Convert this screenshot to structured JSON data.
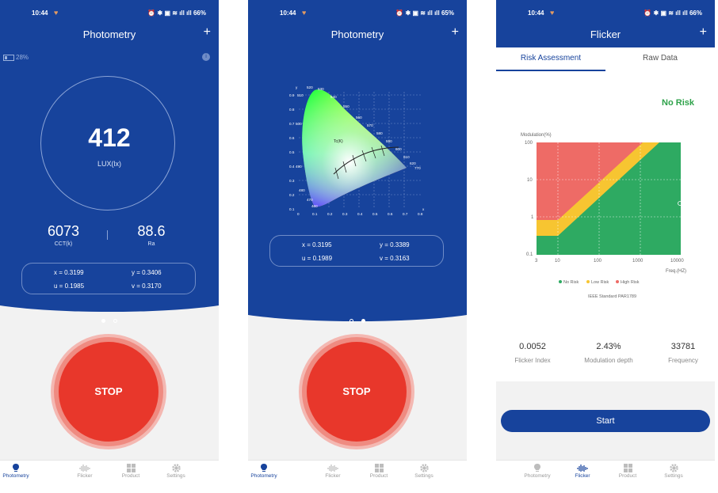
{
  "status_bar": {
    "time": "10:44",
    "heart": "♥",
    "icons": "⏰ ✱ ▣ ≋ ıll ıll",
    "battery_p1": "66%",
    "battery_p2": "65%",
    "battery_p3": "66%"
  },
  "colors": {
    "primary": "#17439c",
    "stop": "#e8372b",
    "no_risk": "#2eaa62",
    "low_risk": "#f7c531",
    "high_risk": "#ee6b66"
  },
  "screen1": {
    "title": "Photometry",
    "plus": "+",
    "battery_level": "28%",
    "lux_value": "412",
    "lux_unit": "LUX(lx)",
    "cct_value": "6073",
    "cct_label": "CCT(k)",
    "ra_value": "88.6",
    "ra_label": "Ra",
    "x": "x = 0.3199",
    "y": "y = 0.3406",
    "u": "u = 0.1985",
    "v": "v = 0.3170",
    "stop_label": "STOP"
  },
  "screen2": {
    "title": "Photometry",
    "plus": "+",
    "x": "x = 0.3195",
    "y": "y = 0.3389",
    "u": "u = 0.1989",
    "v": "v = 0.3163",
    "stop_label": "STOP",
    "cie_axis_x_label": "x",
    "cie_axis_y_label": "y",
    "cie_x_ticks": [
      "0",
      "0.1",
      "0.2",
      "0.3",
      "0.4",
      "0.5",
      "0.6",
      "0.7",
      "0.8"
    ],
    "cie_y_ticks": [
      "0.9",
      "0.8",
      "0.7",
      "0.6",
      "0.5",
      "0.4",
      "0.3",
      "0.2",
      "0.1"
    ],
    "cie_wavelengths": [
      "520",
      "530",
      "510",
      "540",
      "550",
      "560",
      "570",
      "580",
      "590",
      "600",
      "610",
      "620",
      "770",
      "500",
      "490",
      "480",
      "470",
      "460"
    ],
    "cie_label_tc": "Tc(K)"
  },
  "screen3": {
    "title": "Flicker",
    "plus": "+",
    "tabs": [
      "Risk Assessment",
      "Raw Data"
    ],
    "risk_result": "No Risk",
    "chart_ylabel": "Modulation(%)",
    "chart_xlabel": "Freq.(HZ)",
    "chart_y_ticks": [
      "100",
      "10",
      "1",
      "0.1"
    ],
    "chart_x_ticks": [
      "3",
      "10",
      "100",
      "1000",
      "10000"
    ],
    "legend": [
      "No Risk",
      "Low Risk",
      "High Risk"
    ],
    "standard": "IEEE Standard PAR1789",
    "flicker_index": "0.0052",
    "flicker_index_label": "Flicker Index",
    "modulation_depth": "2.43%",
    "modulation_depth_label": "Modulation depth",
    "frequency": "33781",
    "frequency_label": "Frequency",
    "start_label": "Start"
  },
  "nav": [
    "Photometry",
    "Flicker",
    "Product",
    "Settings"
  ]
}
